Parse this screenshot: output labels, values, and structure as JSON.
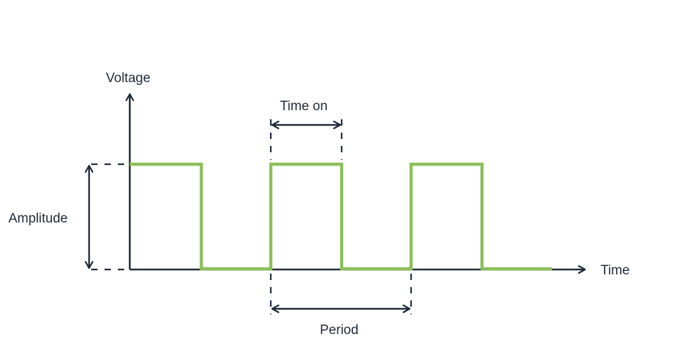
{
  "diagram": {
    "labels": {
      "y_axis": "Voltage",
      "x_axis": "Time",
      "time_on": "Time on",
      "amplitude": "Amplitude",
      "period": "Period"
    },
    "colors": {
      "axis": "#1e2a39",
      "signal": "#8bbf5a",
      "text": "#1e2a39"
    },
    "signal": {
      "type": "square-wave",
      "levels": [
        "high",
        "low",
        "high",
        "low",
        "high",
        "low"
      ],
      "cycles_shown": 3,
      "duty_cycle": 0.5
    }
  }
}
